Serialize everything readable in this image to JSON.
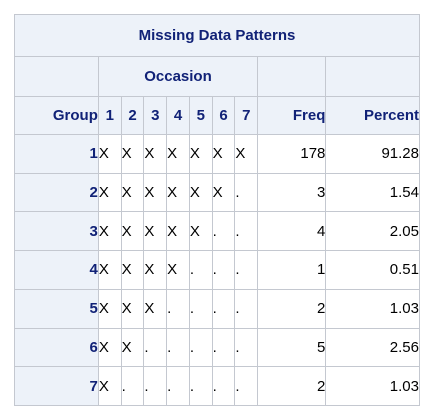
{
  "table": {
    "title": "Missing Data Patterns",
    "occasion_label": "Occasion",
    "col_group": "Group",
    "occasions": [
      "1",
      "2",
      "3",
      "4",
      "5",
      "6",
      "7"
    ],
    "col_freq": "Freq",
    "col_percent": "Percent",
    "rows": [
      {
        "group": "1",
        "pattern": [
          "X",
          "X",
          "X",
          "X",
          "X",
          "X",
          "X"
        ],
        "freq": "178",
        "percent": "91.28"
      },
      {
        "group": "2",
        "pattern": [
          "X",
          "X",
          "X",
          "X",
          "X",
          "X",
          "."
        ],
        "freq": "3",
        "percent": "1.54"
      },
      {
        "group": "3",
        "pattern": [
          "X",
          "X",
          "X",
          "X",
          "X",
          ".",
          "."
        ],
        "freq": "4",
        "percent": "2.05"
      },
      {
        "group": "4",
        "pattern": [
          "X",
          "X",
          "X",
          "X",
          ".",
          ".",
          "."
        ],
        "freq": "1",
        "percent": "0.51"
      },
      {
        "group": "5",
        "pattern": [
          "X",
          "X",
          "X",
          ".",
          ".",
          ".",
          "."
        ],
        "freq": "2",
        "percent": "1.03"
      },
      {
        "group": "6",
        "pattern": [
          "X",
          "X",
          ".",
          ".",
          ".",
          ".",
          "."
        ],
        "freq": "5",
        "percent": "2.56"
      },
      {
        "group": "7",
        "pattern": [
          "X",
          ".",
          ".",
          ".",
          ".",
          ".",
          "."
        ],
        "freq": "2",
        "percent": "1.03"
      }
    ]
  }
}
